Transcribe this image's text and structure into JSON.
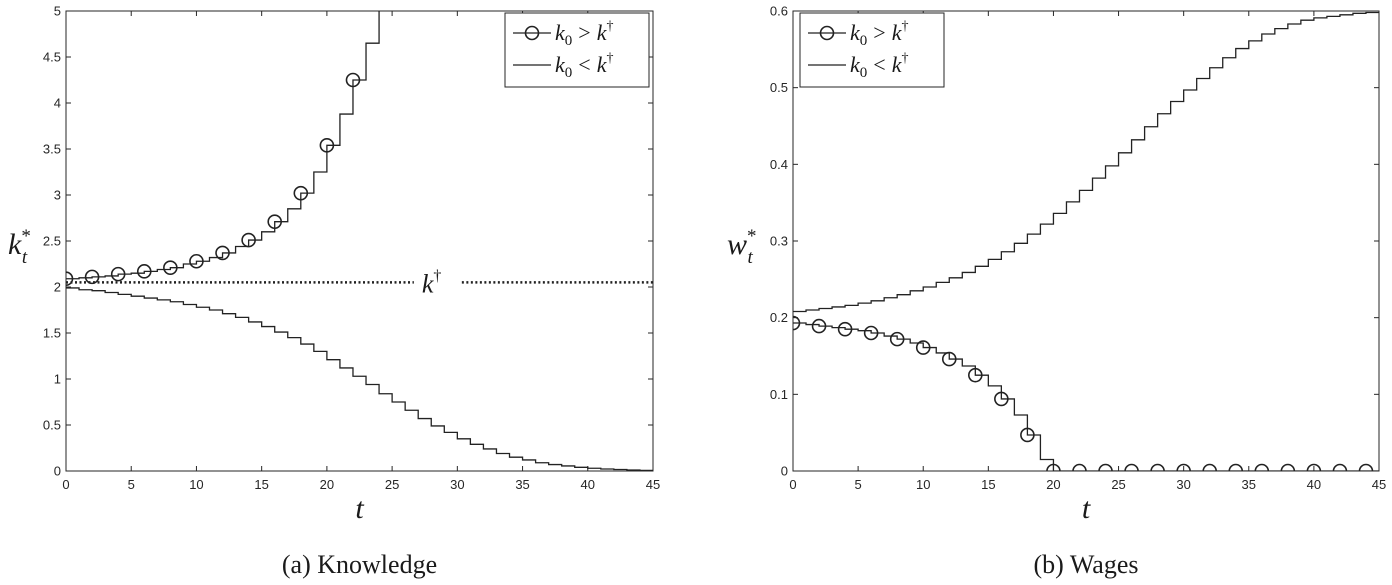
{
  "chart_data": [
    {
      "type": "line",
      "subtype": "step",
      "caption": "(a) Knowledge",
      "xlabel": "t",
      "ylabel": "k",
      "ylabel_sub": "t",
      "ylabel_sup": "*",
      "xlim": [
        0,
        45
      ],
      "ylim": [
        0,
        5
      ],
      "xticks": [
        "0",
        "5",
        "10",
        "15",
        "20",
        "25",
        "30",
        "35",
        "40",
        "45"
      ],
      "yticks": [
        "0",
        "0.5",
        "1",
        "1.5",
        "2",
        "2.5",
        "3",
        "3.5",
        "4",
        "4.5",
        "5"
      ],
      "grid": false,
      "legend_position": "top-right",
      "reference_line": {
        "label": "k",
        "label_sup": "†",
        "y": 2.05,
        "style": "dotted"
      },
      "series": [
        {
          "name": "k0 > k†",
          "legend": {
            "var": "k",
            "sub": "0",
            "op": ">",
            "rhs": "k",
            "rhs_sup": "†"
          },
          "marker": "circle",
          "marker_every": 2,
          "x": [
            0,
            1,
            2,
            3,
            4,
            5,
            6,
            7,
            8,
            9,
            10,
            11,
            12,
            13,
            14,
            15,
            16,
            17,
            18,
            19,
            20,
            21,
            22,
            23,
            24,
            25
          ],
          "y": [
            2.09,
            2.1,
            2.11,
            2.12,
            2.14,
            2.15,
            2.17,
            2.19,
            2.21,
            2.25,
            2.28,
            2.32,
            2.37,
            2.44,
            2.51,
            2.6,
            2.71,
            2.85,
            3.02,
            3.25,
            3.54,
            3.88,
            4.25,
            4.65,
            5.2,
            5.6
          ]
        },
        {
          "name": "k0 < k†",
          "legend": {
            "var": "k",
            "sub": "0",
            "op": "<",
            "rhs": "k",
            "rhs_sup": "†"
          },
          "marker": "none",
          "x": [
            0,
            1,
            2,
            3,
            4,
            5,
            6,
            7,
            8,
            9,
            10,
            11,
            12,
            13,
            14,
            15,
            16,
            17,
            18,
            19,
            20,
            21,
            22,
            23,
            24,
            25,
            26,
            27,
            28,
            29,
            30,
            31,
            32,
            33,
            34,
            35,
            36,
            37,
            38,
            39,
            40,
            41,
            42,
            43,
            44,
            45
          ],
          "y": [
            1.99,
            1.97,
            1.96,
            1.94,
            1.92,
            1.9,
            1.88,
            1.86,
            1.84,
            1.81,
            1.78,
            1.75,
            1.71,
            1.67,
            1.62,
            1.57,
            1.51,
            1.45,
            1.38,
            1.3,
            1.21,
            1.12,
            1.03,
            0.94,
            0.84,
            0.75,
            0.66,
            0.57,
            0.49,
            0.42,
            0.35,
            0.29,
            0.24,
            0.19,
            0.15,
            0.12,
            0.09,
            0.07,
            0.055,
            0.04,
            0.03,
            0.022,
            0.016,
            0.011,
            0.007,
            0.004
          ]
        }
      ]
    },
    {
      "type": "line",
      "subtype": "step",
      "caption": "(b) Wages",
      "xlabel": "t",
      "ylabel": "w",
      "ylabel_sub": "t",
      "ylabel_sup": "*",
      "xlim": [
        0,
        45
      ],
      "ylim": [
        0,
        0.6
      ],
      "xticks": [
        "0",
        "5",
        "10",
        "15",
        "20",
        "25",
        "30",
        "35",
        "40",
        "45"
      ],
      "yticks": [
        "0",
        "0.1",
        "0.2",
        "0.3",
        "0.4",
        "0.5",
        "0.6"
      ],
      "grid": false,
      "legend_position": "top-left",
      "series": [
        {
          "name": "k0 > k†",
          "legend": {
            "var": "k",
            "sub": "0",
            "op": ">",
            "rhs": "k",
            "rhs_sup": "†"
          },
          "marker": "circle",
          "marker_every": 2,
          "x": [
            0,
            1,
            2,
            3,
            4,
            5,
            6,
            7,
            8,
            9,
            10,
            11,
            12,
            13,
            14,
            15,
            16,
            17,
            18,
            19,
            20,
            21,
            22,
            23,
            24,
            25,
            26,
            27,
            28,
            29,
            30,
            31,
            32,
            33,
            34,
            35,
            36,
            37,
            38,
            39,
            40,
            41,
            42,
            43,
            44,
            45
          ],
          "y": [
            0.193,
            0.191,
            0.189,
            0.187,
            0.185,
            0.183,
            0.18,
            0.176,
            0.172,
            0.167,
            0.161,
            0.154,
            0.146,
            0.137,
            0.125,
            0.111,
            0.094,
            0.073,
            0.047,
            0.015,
            0,
            0,
            0,
            0,
            0,
            0,
            0,
            0,
            0,
            0,
            0,
            0,
            0,
            0,
            0,
            0,
            0,
            0,
            0,
            0,
            0,
            0,
            0,
            0,
            0,
            0
          ]
        },
        {
          "name": "k0 < k†",
          "legend": {
            "var": "k",
            "sub": "0",
            "op": "<",
            "rhs": "k",
            "rhs_sup": "†"
          },
          "marker": "none",
          "x": [
            0,
            1,
            2,
            3,
            4,
            5,
            6,
            7,
            8,
            9,
            10,
            11,
            12,
            13,
            14,
            15,
            16,
            17,
            18,
            19,
            20,
            21,
            22,
            23,
            24,
            25,
            26,
            27,
            28,
            29,
            30,
            31,
            32,
            33,
            34,
            35,
            36,
            37,
            38,
            39,
            40,
            41,
            42,
            43,
            44,
            45
          ],
          "y": [
            0.208,
            0.21,
            0.212,
            0.214,
            0.216,
            0.219,
            0.222,
            0.226,
            0.23,
            0.235,
            0.24,
            0.246,
            0.252,
            0.259,
            0.267,
            0.276,
            0.286,
            0.297,
            0.309,
            0.322,
            0.336,
            0.351,
            0.366,
            0.382,
            0.398,
            0.415,
            0.432,
            0.449,
            0.466,
            0.482,
            0.497,
            0.512,
            0.526,
            0.539,
            0.551,
            0.561,
            0.57,
            0.577,
            0.583,
            0.588,
            0.591,
            0.593,
            0.595,
            0.597,
            0.598,
            0.598
          ]
        }
      ]
    }
  ]
}
